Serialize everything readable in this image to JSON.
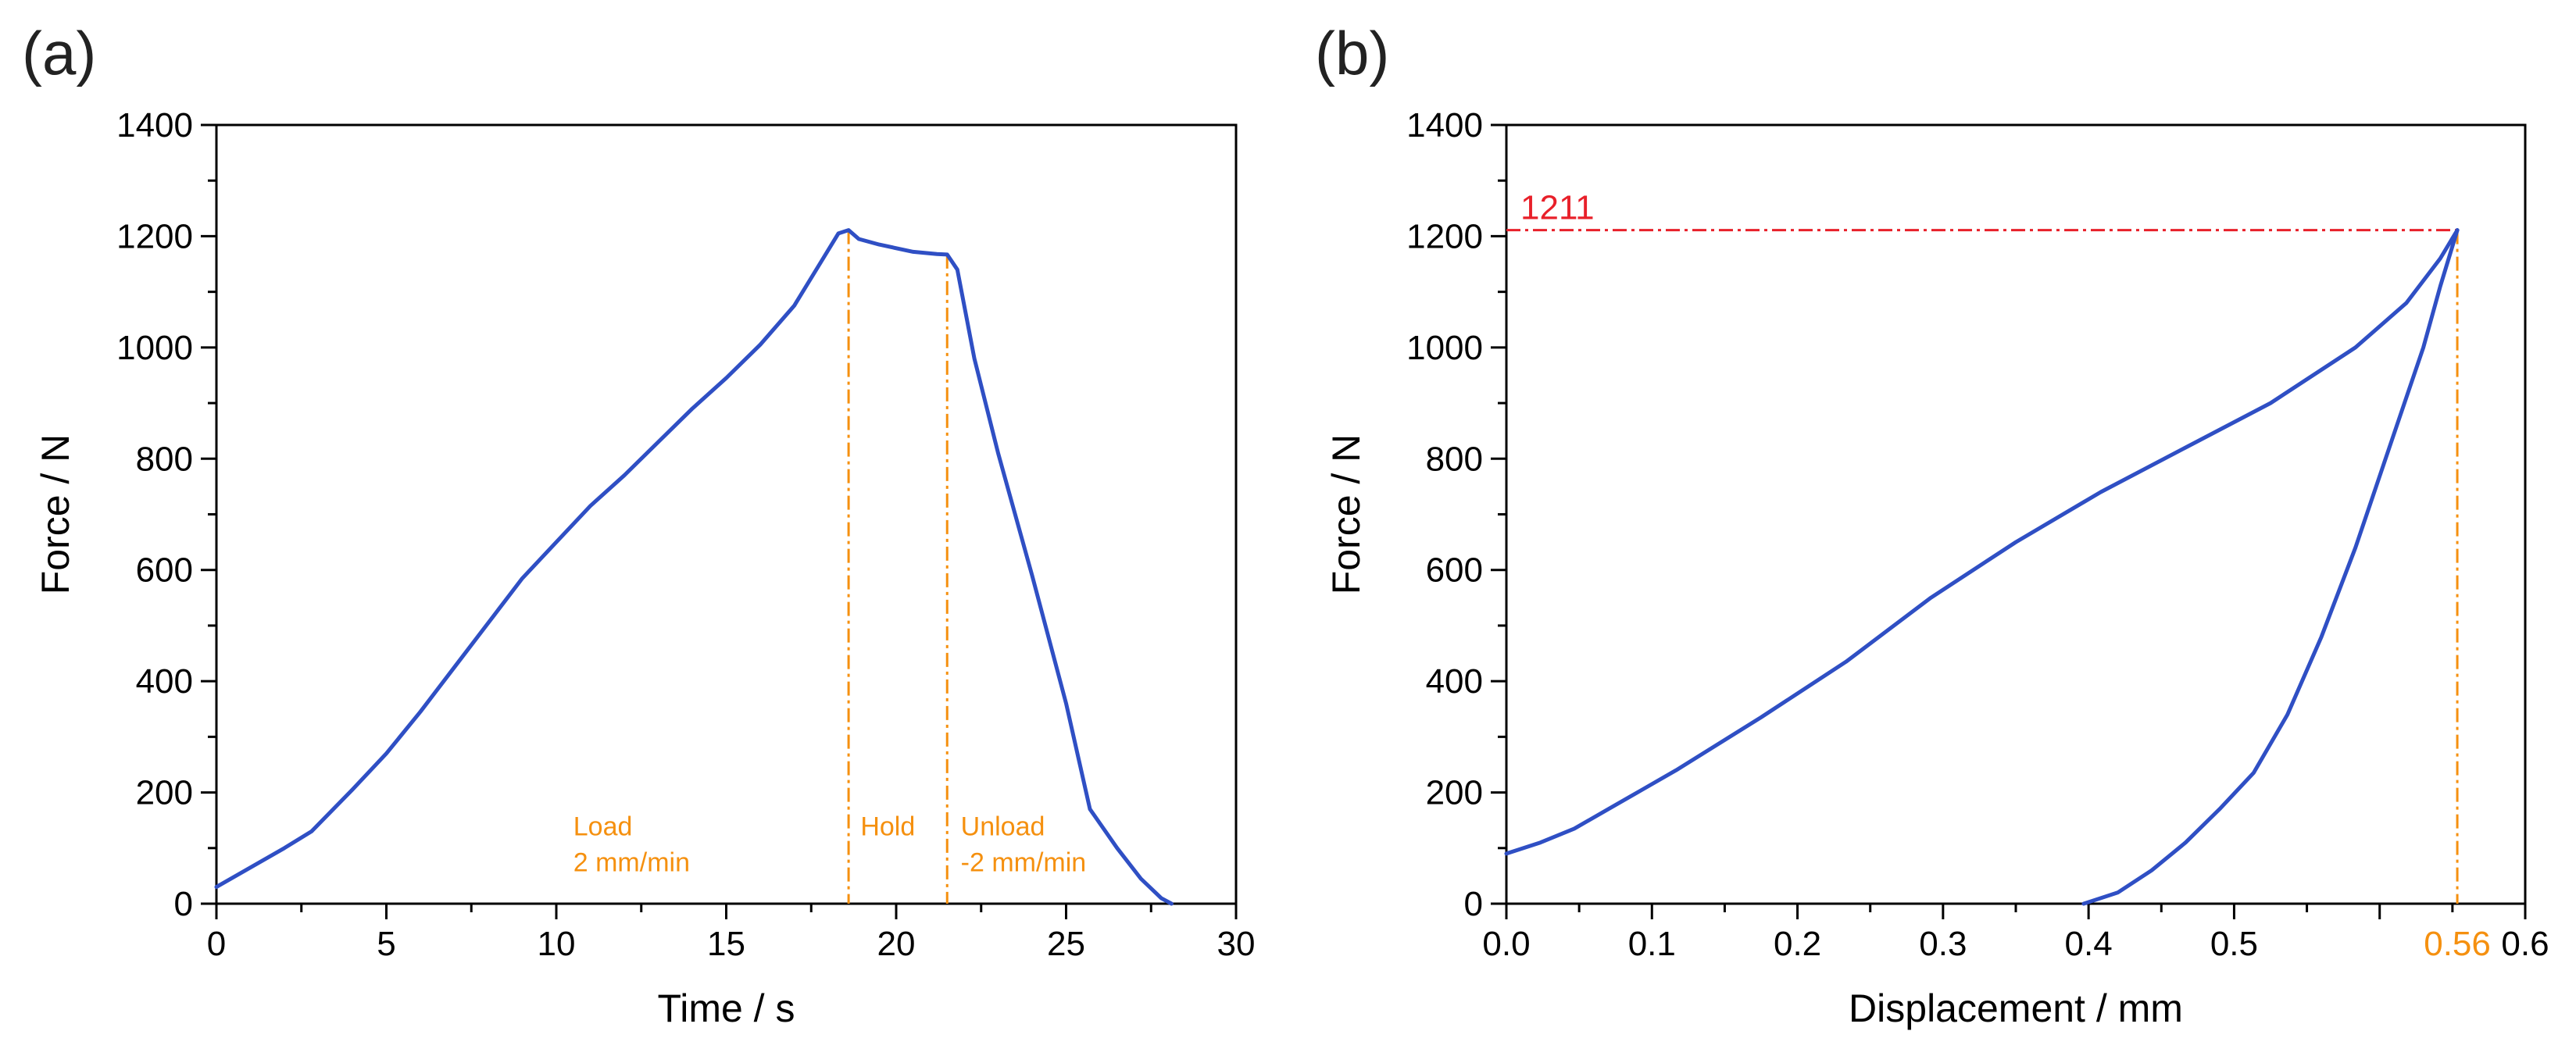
{
  "colors": {
    "curve": "#2f4fc4",
    "guide_orange": "#f5900f",
    "guide_red": "#e8202a",
    "axis": "#000000"
  },
  "chart_data": [
    {
      "type": "line",
      "panel_label": "(a)",
      "title": "",
      "xlabel": "Time / s",
      "ylabel": "Force / N",
      "xlim": [
        0,
        30
      ],
      "ylim": [
        0,
        1400
      ],
      "x_ticks": [
        "0",
        "5",
        "10",
        "15",
        "20",
        "25",
        "30"
      ],
      "y_ticks": [
        "0",
        "200",
        "400",
        "600",
        "800",
        "1000",
        "1200",
        "1400"
      ],
      "series": [
        {
          "name": "force-time",
          "x": [
            0,
            1,
            2,
            2.8,
            4,
            5,
            6,
            7,
            8,
            9,
            10,
            11,
            12,
            13,
            14,
            15,
            16,
            17,
            17.8,
            18.3,
            18.6,
            18.9,
            19.5,
            20.5,
            21.2,
            21.5,
            21.8,
            22.3,
            23,
            24,
            25,
            25.7,
            26.5,
            27.2,
            27.8,
            28.1
          ],
          "y": [
            30,
            65,
            100,
            130,
            205,
            270,
            345,
            425,
            505,
            585,
            650,
            715,
            770,
            830,
            890,
            945,
            1005,
            1075,
            1155,
            1205,
            1211,
            1195,
            1185,
            1172,
            1168,
            1167,
            1140,
            980,
            810,
            590,
            360,
            170,
            100,
            45,
            10,
            0
          ]
        }
      ],
      "guide_lines_x": [
        18.6,
        21.5
      ],
      "annotations": [
        {
          "text": "Load",
          "x": 10.5,
          "y": 140
        },
        {
          "text": "2 mm/min",
          "x": 10.5,
          "y": 75
        },
        {
          "text": "Hold",
          "x": 18.95,
          "y": 140
        },
        {
          "text": "Unload",
          "x": 21.9,
          "y": 140
        },
        {
          "text": "-2 mm/min",
          "x": 21.9,
          "y": 75
        }
      ]
    },
    {
      "type": "line",
      "panel_label": "(b)",
      "title": "",
      "xlabel": "Displacement / mm",
      "ylabel": "Force / N",
      "xlim": [
        0,
        0.6
      ],
      "ylim": [
        0,
        1400
      ],
      "x_ticks": [
        "0.0",
        "0.1",
        "0.2",
        "0.3",
        "0.4",
        "0.5",
        "",
        "0.6"
      ],
      "y_ticks": [
        "0",
        "200",
        "400",
        "600",
        "800",
        "1000",
        "1200",
        "1400"
      ],
      "series": [
        {
          "name": "loading",
          "x": [
            0,
            0.02,
            0.04,
            0.06,
            0.08,
            0.1,
            0.15,
            0.2,
            0.25,
            0.3,
            0.35,
            0.4,
            0.45,
            0.5,
            0.53,
            0.55,
            0.56
          ],
          "y": [
            90,
            110,
            135,
            170,
            205,
            240,
            335,
            435,
            550,
            650,
            740,
            820,
            900,
            1000,
            1080,
            1160,
            1211
          ]
        },
        {
          "name": "unloading",
          "x": [
            0.56,
            0.55,
            0.54,
            0.52,
            0.5,
            0.48,
            0.46,
            0.44,
            0.42,
            0.4,
            0.38,
            0.36,
            0.34
          ],
          "y": [
            1211,
            1110,
            1000,
            820,
            640,
            480,
            340,
            235,
            170,
            110,
            60,
            20,
            0
          ]
        }
      ],
      "peak": {
        "x": 0.56,
        "y": 1211,
        "y_label": "1211",
        "x_label": "0.56"
      }
    }
  ]
}
